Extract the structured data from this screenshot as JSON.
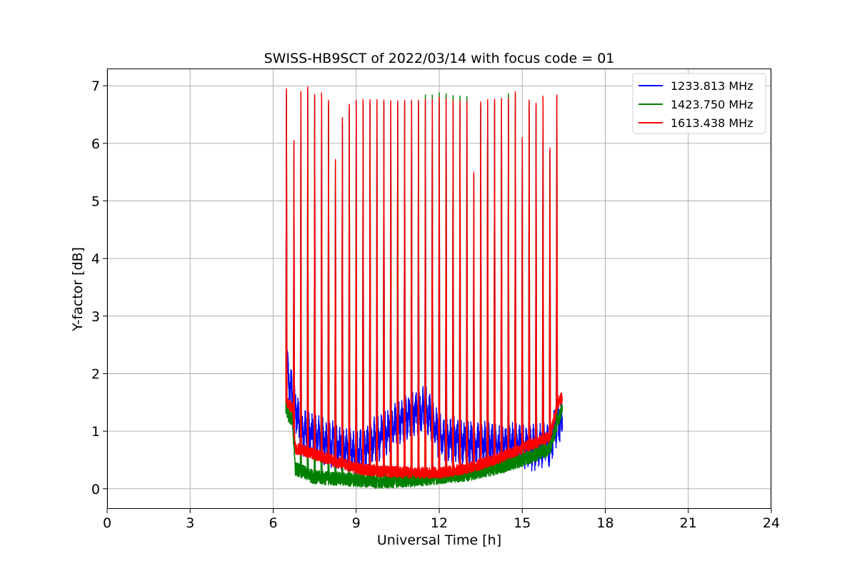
{
  "chart_data": {
    "type": "line",
    "title": "SWISS-HB9SCT of 2022/03/14 with focus code = 01",
    "xlabel": "Universal Time [h]",
    "ylabel": "Y-factor [dB]",
    "xlim": [
      0,
      24
    ],
    "ylim": [
      -0.35,
      7.3
    ],
    "xticks": [
      0,
      3,
      6,
      9,
      12,
      15,
      18,
      21,
      24
    ],
    "yticks": [
      0,
      1,
      2,
      3,
      4,
      5,
      6,
      7
    ],
    "grid": true,
    "legend_position": "top-right",
    "data_start_h": 6.5,
    "data_end_h": 16.45,
    "series": [
      {
        "name": "1233.813 MHz",
        "color": "#0000ff",
        "baseline": [
          [
            6.5,
            2.1
          ],
          [
            6.55,
            1.9
          ],
          [
            6.75,
            1.5
          ],
          [
            7.0,
            1.0
          ],
          [
            8.0,
            0.8
          ],
          [
            9.0,
            0.6
          ],
          [
            10.0,
            0.95
          ],
          [
            11.0,
            1.3
          ],
          [
            11.5,
            1.4
          ],
          [
            12.0,
            0.9
          ],
          [
            13.0,
            0.8
          ],
          [
            14.0,
            0.75
          ],
          [
            15.0,
            0.75
          ],
          [
            15.5,
            0.7
          ],
          [
            16.0,
            0.75
          ],
          [
            16.2,
            1.1
          ],
          [
            16.45,
            1.2
          ]
        ],
        "noise": 0.25
      },
      {
        "name": "1423.750 MHz",
        "color": "#008000",
        "baseline": [
          [
            6.5,
            1.3
          ],
          [
            6.7,
            1.2
          ],
          [
            6.8,
            0.35
          ],
          [
            7.5,
            0.2
          ],
          [
            9.0,
            0.15
          ],
          [
            10.0,
            0.12
          ],
          [
            11.0,
            0.15
          ],
          [
            12.0,
            0.2
          ],
          [
            13.0,
            0.25
          ],
          [
            14.0,
            0.35
          ],
          [
            15.0,
            0.5
          ],
          [
            16.0,
            0.7
          ],
          [
            16.3,
            1.2
          ],
          [
            16.45,
            1.4
          ]
        ],
        "noise": 0.12
      },
      {
        "name": "1613.438 MHz",
        "color": "#ff0000",
        "baseline": [
          [
            6.5,
            1.5
          ],
          [
            6.7,
            1.4
          ],
          [
            6.8,
            0.7
          ],
          [
            7.5,
            0.6
          ],
          [
            9.0,
            0.35
          ],
          [
            10.0,
            0.3
          ],
          [
            11.0,
            0.28
          ],
          [
            12.0,
            0.28
          ],
          [
            13.0,
            0.35
          ],
          [
            14.0,
            0.5
          ],
          [
            15.0,
            0.7
          ],
          [
            16.0,
            0.9
          ],
          [
            16.3,
            1.5
          ],
          [
            16.45,
            1.6
          ]
        ],
        "noise": 0.1
      }
    ],
    "spikes": {
      "series": "1613.438 MHz",
      "x": [
        6.48,
        6.75,
        7.0,
        7.25,
        7.5,
        7.75,
        8.0,
        8.25,
        8.5,
        8.75,
        9.0,
        9.25,
        9.5,
        9.75,
        10.0,
        10.25,
        10.5,
        10.75,
        11.0,
        11.25,
        11.5,
        11.75,
        12.0,
        12.25,
        12.5,
        12.75,
        13.0,
        13.25,
        13.5,
        13.75,
        14.0,
        14.25,
        14.5,
        14.75,
        15.0,
        15.25,
        15.5,
        15.75,
        16.0,
        16.25
      ],
      "y": [
        6.95,
        6.05,
        6.9,
        6.98,
        6.85,
        6.88,
        6.75,
        5.72,
        6.45,
        6.68,
        6.75,
        6.76,
        6.76,
        6.76,
        6.75,
        6.74,
        6.74,
        6.75,
        6.75,
        6.75,
        6.76,
        6.76,
        6.8,
        6.78,
        6.75,
        6.74,
        6.73,
        5.5,
        6.72,
        6.76,
        6.77,
        6.78,
        6.78,
        6.9,
        6.1,
        6.75,
        6.7,
        6.82,
        5.92,
        6.84
      ],
      "green_above": [
        11.5,
        11.75,
        12.0,
        12.25,
        12.5,
        12.75,
        13.0,
        14.5
      ]
    }
  }
}
